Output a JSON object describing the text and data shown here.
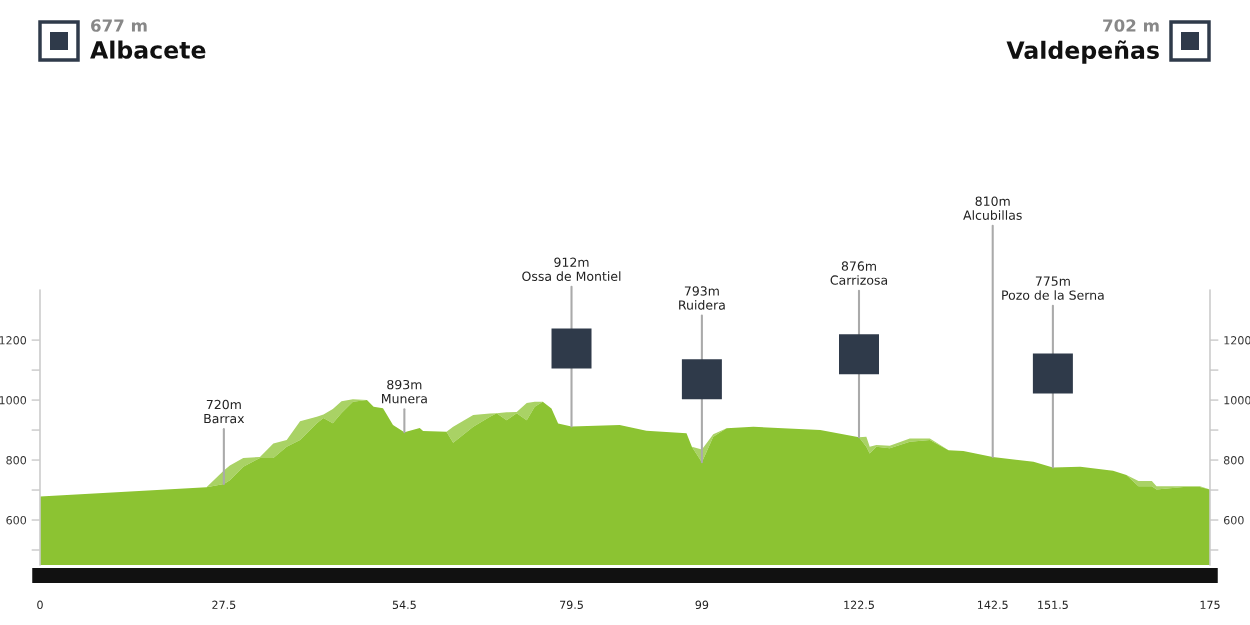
{
  "chart_data": {
    "type": "area",
    "annotations": [
      "677 m",
      "Albacete",
      "702 m",
      "Valdepeñas",
      {
        "text": "720m\nBarrax",
        "x": 27.5,
        "y": 720
      },
      {
        "text": "893m\nMunera",
        "x": 54.5,
        "y": 893
      },
      {
        "text": "912m\nOssa de Montiel",
        "x": 79.5,
        "y": 912
      },
      {
        "text": "793m\nRuidera",
        "x": 99,
        "y": 793
      },
      {
        "text": "876m\nCarrizosa",
        "x": 122.5,
        "y": 876
      },
      {
        "text": "810m\nAlcubillas",
        "x": 142.5,
        "y": 810
      },
      {
        "text": "775m\nPozo de la Serna",
        "x": 151.5,
        "y": 775
      }
    ],
    "series": [
      {
        "color": "#8cc332",
        "x": [
          0,
          24.9,
          27.5,
          28.4,
          30.4,
          32.9,
          34.9,
          36.9,
          38.9,
          41.4,
          42.4,
          43.8,
          45.1,
          46.8,
          48.9,
          49.9,
          51.3,
          52.8,
          54.5,
          56.8,
          57.3,
          60.8,
          61.8,
          64.8,
          67.3,
          68.3,
          69.8,
          71.3,
          72.8,
          74.0,
          75.2,
          76.5,
          77.5,
          79.5,
          86.7,
          90.7,
          96.7,
          97.5,
          99,
          100.7,
          102.7,
          106.7,
          116.7,
          122.5,
          123.6,
          124.1,
          125.1,
          127.1,
          130.1,
          133.1,
          135.9,
          138.1,
          142.5,
          148.6,
          151.5,
          155.6,
          160.5,
          162.5,
          164.3,
          166.3,
          167.0,
          171.0,
          173.5,
          175
        ],
        "values": [
          678,
          709,
          720,
          733,
          778,
          807,
          807,
          844,
          867,
          923,
          940,
          923,
          957,
          994,
          1000,
          978,
          973,
          917,
          893,
          907,
          897,
          894,
          858,
          911,
          944,
          956,
          933,
          956,
          933,
          978,
          994,
          972,
          922,
          912,
          917,
          898,
          889,
          844,
          793,
          878,
          906,
          911,
          900,
          876,
          844,
          822,
          844,
          839,
          861,
          867,
          833,
          830,
          810,
          794,
          775,
          778,
          764,
          750,
          713,
          713,
          702,
          710,
          710,
          702
        ],
        "lower": [
          678,
          709,
          720,
          733,
          778,
          807,
          807,
          844,
          867,
          923,
          940,
          923,
          957,
          994,
          1000,
          978,
          973,
          917,
          893,
          907,
          897,
          894,
          858,
          911,
          944,
          956,
          933,
          956,
          933,
          978,
          994,
          972,
          922,
          912,
          917,
          898,
          889,
          844,
          793,
          878,
          906,
          911,
          900,
          876,
          844,
          822,
          844,
          839,
          861,
          867,
          833,
          830,
          810,
          794,
          775,
          778,
          764,
          750,
          713,
          713,
          702,
          710,
          710,
          702
        ],
        "upper": [
          678,
          709,
          765,
          782,
          807,
          810,
          855,
          867,
          929,
          944,
          952,
          970,
          996,
          1003,
          1000,
          978,
          973,
          917,
          893,
          907,
          897,
          894,
          911,
          950,
          955,
          956,
          959,
          960,
          990,
          994,
          994,
          972,
          922,
          912,
          917,
          898,
          889,
          844,
          835,
          886,
          906,
          911,
          900,
          876,
          878,
          844,
          850,
          848,
          872,
          872,
          833,
          830,
          810,
          794,
          775,
          778,
          764,
          750,
          730,
          730,
          713,
          713,
          713,
          702
        ]
      }
    ],
    "xlim": [
      0,
      175
    ],
    "xticks": [
      0,
      27.5,
      54.5,
      79.5,
      99,
      122.5,
      142.5,
      151.5,
      175
    ],
    "ylim": [
      450,
      1367
    ],
    "yticks": [
      {
        "value": 500,
        "label": null
      },
      600,
      {
        "value": 700,
        "label": null
      },
      800,
      {
        "value": 900,
        "label": null
      },
      1000,
      {
        "value": 1100,
        "label": null
      },
      1200
    ],
    "y2lim": [
      450,
      1367
    ],
    "y2ticks": [
      {
        "value": 500,
        "label": null
      },
      600,
      {
        "value": 700,
        "label": null
      },
      800,
      {
        "value": 900,
        "label": null
      },
      1000,
      {
        "value": 1100,
        "label": null
      },
      1200
    ]
  }
}
